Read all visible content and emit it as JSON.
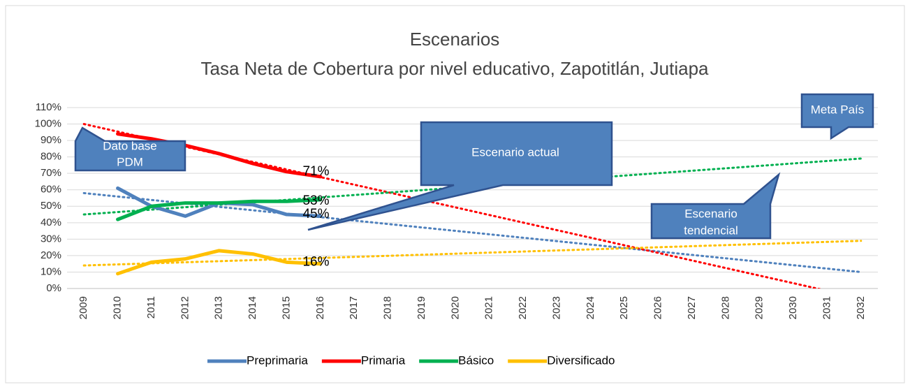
{
  "chart_data": {
    "type": "line",
    "title": "Escenarios",
    "subtitle": "Tasa Neta de Cobertura por nivel educativo, Zapotitlán, Jutiapa",
    "categories": [
      "2009",
      "2010",
      "2011",
      "2012",
      "2013",
      "2014",
      "2015",
      "2016",
      "2017",
      "2018",
      "2019",
      "2020",
      "2021",
      "2022",
      "2023",
      "2024",
      "2025",
      "2026",
      "2027",
      "2028",
      "2029",
      "2030",
      "2031",
      "2032"
    ],
    "ylim": [
      0,
      110
    ],
    "yticks": [
      {
        "value": 0,
        "label": "0%"
      },
      {
        "value": 10,
        "label": "10%"
      },
      {
        "value": 20,
        "label": "20%"
      },
      {
        "value": 30,
        "label": "30%"
      },
      {
        "value": 40,
        "label": "40%"
      },
      {
        "value": 50,
        "label": "50%"
      },
      {
        "value": 60,
        "label": "60%"
      },
      {
        "value": 70,
        "label": "70%"
      },
      {
        "value": 80,
        "label": "80%"
      },
      {
        "value": 90,
        "label": "90%"
      },
      {
        "value": 100,
        "label": "100%"
      },
      {
        "value": 110,
        "label": "110%"
      }
    ],
    "grid": true,
    "legend": "bottom",
    "series": [
      {
        "name": "Preprimaria",
        "color": "#4f81bd",
        "values": [
          null,
          61,
          50,
          44,
          52,
          51,
          45,
          44,
          null,
          null,
          null,
          null,
          null,
          null,
          null,
          null,
          null,
          null,
          null,
          null,
          null,
          null,
          null,
          null
        ],
        "value_labels": [
          null,
          null,
          null,
          null,
          null,
          null,
          "45%",
          null,
          null,
          null,
          null,
          null,
          null,
          null,
          null,
          null,
          null,
          null,
          null,
          null,
          null,
          null,
          null,
          null
        ],
        "trend": [
          58,
          10
        ]
      },
      {
        "name": "Primaria",
        "color": "#ff0000",
        "values": [
          null,
          94,
          91,
          87,
          82,
          76,
          71,
          68,
          null,
          null,
          null,
          null,
          null,
          null,
          null,
          null,
          null,
          null,
          null,
          null,
          null,
          null,
          null,
          null
        ],
        "value_labels": [
          null,
          null,
          null,
          null,
          null,
          null,
          "71%",
          null,
          null,
          null,
          null,
          null,
          null,
          null,
          null,
          null,
          null,
          null,
          null,
          null,
          null,
          null,
          null,
          null
        ],
        "trend": [
          100,
          -6
        ]
      },
      {
        "name": "Básico",
        "color": "#00b050",
        "values": [
          null,
          42,
          50,
          52,
          52,
          53,
          53,
          54,
          null,
          null,
          null,
          null,
          null,
          null,
          null,
          null,
          null,
          null,
          null,
          null,
          null,
          null,
          null,
          null
        ],
        "value_labels": [
          null,
          null,
          null,
          null,
          null,
          null,
          "53%",
          null,
          null,
          null,
          null,
          null,
          null,
          null,
          null,
          null,
          null,
          null,
          null,
          null,
          null,
          null,
          null,
          null
        ],
        "trend": [
          45,
          79
        ]
      },
      {
        "name": "Diversificado",
        "color": "#ffc000",
        "values": [
          null,
          9,
          16,
          18,
          23,
          21,
          16,
          15,
          null,
          null,
          null,
          null,
          null,
          null,
          null,
          null,
          null,
          null,
          null,
          null,
          null,
          null,
          null,
          null
        ],
        "value_labels": [
          null,
          null,
          null,
          null,
          null,
          null,
          "16%",
          null,
          null,
          null,
          null,
          null,
          null,
          null,
          null,
          null,
          null,
          null,
          null,
          null,
          null,
          null,
          null,
          null
        ],
        "trend": [
          14,
          29
        ]
      }
    ],
    "annotations": [
      {
        "lines": [
          "Dato base",
          "PDM"
        ]
      },
      {
        "lines": [
          "Escenario actual"
        ]
      },
      {
        "lines": [
          "Meta  País"
        ]
      },
      {
        "lines": [
          "Escenario",
          "tendencial"
        ]
      }
    ]
  }
}
